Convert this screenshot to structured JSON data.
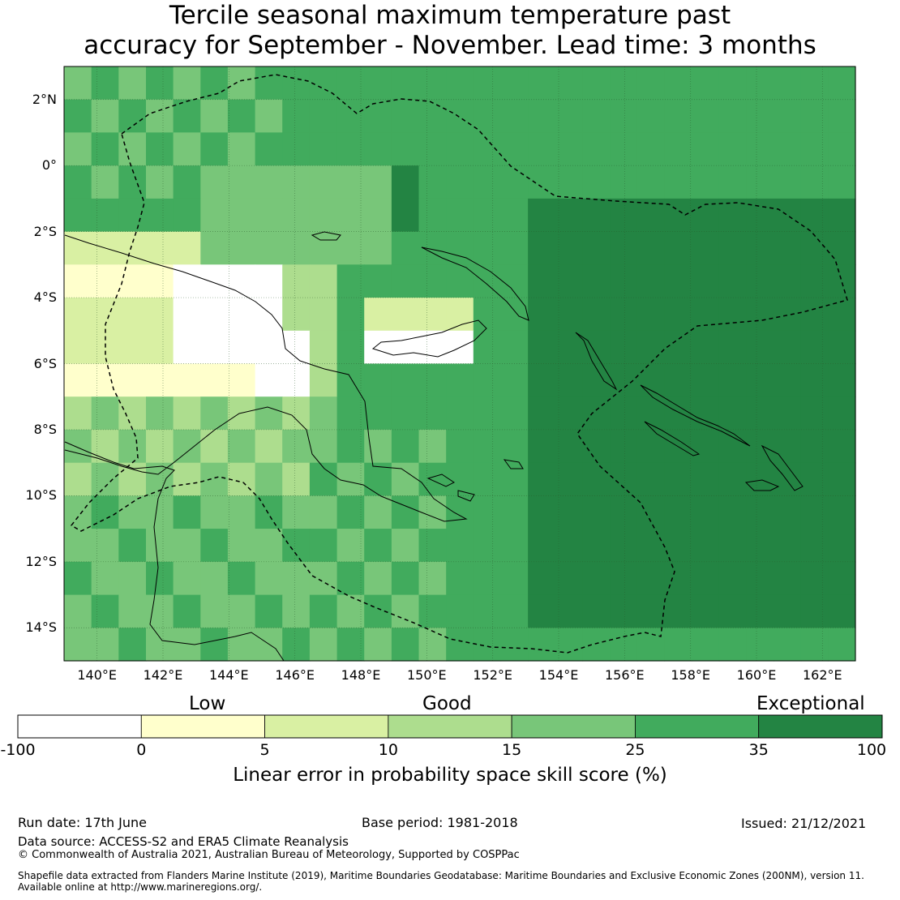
{
  "title_line1": "Tercile seasonal maximum temperature past",
  "title_line2": "accuracy for September - November. Lead time: 3 months",
  "map": {
    "lon_ticks": [
      "140°E",
      "142°E",
      "144°E",
      "146°E",
      "148°E",
      "150°E",
      "152°E",
      "154°E",
      "156°E",
      "158°E",
      "160°E",
      "162°E"
    ],
    "lat_ticks": [
      "2°N",
      "0°",
      "2°S",
      "4°S",
      "6°S",
      "8°S",
      "10°S",
      "12°S",
      "14°S"
    ],
    "lon_range": [
      139.0,
      163.0
    ],
    "lat_range": [
      -15.0,
      3.0
    ],
    "grid_resolution_deg": 0.8,
    "ocean_color": "#41ab5d"
  },
  "colorbar": {
    "categories": [
      "Low",
      "Good",
      "Exceptional"
    ],
    "tick_labels": [
      "-100",
      "0",
      "5",
      "10",
      "15",
      "25",
      "35",
      "100"
    ],
    "colors": [
      "#ffffff",
      "#ffffcc",
      "#d9f0a3",
      "#addd8e",
      "#78c679",
      "#41ab5d",
      "#238443"
    ],
    "title": "Linear error in probability space skill score (%)"
  },
  "footer": {
    "run_date": "Run date: 17th June",
    "base_period": "Base period: 1981-2018",
    "issued": "Issued: 21/12/2021",
    "data_source": "Data source: ACCESS-S2 and ERA5 Climate Reanalysis",
    "copyright": "© Commonwealth of Australia 2021, Australian Bureau of Meteorology, Supported by COSPPac",
    "shapefile_line1": "Shapefile data extracted from Flanders Marine Institute (2019), Maritime Boundaries Geodatabase: Maritime Boundaries and Exclusive Economic Zones (200NM), version 11.",
    "shapefile_line2": "Available online at http://www.marineregions.org/."
  }
}
